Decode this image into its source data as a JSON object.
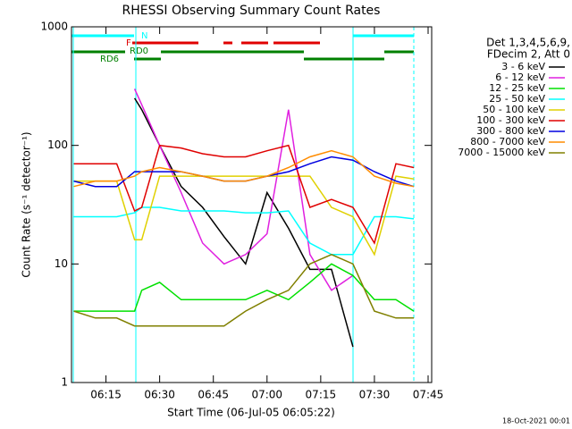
{
  "chart_data": {
    "type": "line",
    "title": "RHESSI Observing Summary Count Rates",
    "x_label": "Start Time (06-Jul-05 06:05:22)",
    "y_label": "Count Rate (s⁻¹ detector⁻¹)",
    "legend_title": [
      "Det 1,3,4,5,6,9,",
      "FDecim 2, Att 0"
    ],
    "annotations": [
      "N",
      "F",
      "RD0",
      "RD6"
    ],
    "footer": "18-Oct-2021 00:01",
    "log_scale": true,
    "x": [
      366,
      372,
      378,
      383,
      385,
      390,
      396,
      402,
      408,
      414,
      420,
      426,
      432,
      438,
      444,
      450,
      456,
      461
    ],
    "xlim": [
      365.37,
      466
    ],
    "xticks": [
      {
        "value": 375,
        "label": "06:15"
      },
      {
        "value": 390,
        "label": "06:30"
      },
      {
        "value": 405,
        "label": "06:45"
      },
      {
        "value": 420,
        "label": "07:00"
      },
      {
        "value": 435,
        "label": "07:15"
      },
      {
        "value": 450,
        "label": "07:30"
      },
      {
        "value": 465,
        "label": "07:45"
      }
    ],
    "ylim": [
      1,
      1000
    ],
    "yticks": [
      1,
      10,
      100,
      1000
    ],
    "series": [
      {
        "name": "3 - 6 keV",
        "color": "#000000",
        "values": [
          null,
          null,
          null,
          250,
          200,
          100,
          45,
          30,
          17,
          10,
          40,
          20,
          9,
          9,
          2,
          null,
          null,
          null
        ]
      },
      {
        "name": "6 - 12 keV",
        "color": "#e020e0",
        "values": [
          null,
          null,
          null,
          300,
          220,
          100,
          40,
          15,
          10,
          12,
          18,
          200,
          12,
          6,
          8,
          null,
          null,
          null
        ]
      },
      {
        "name": "12 - 25 keV",
        "color": "#00e000",
        "values": [
          4,
          4,
          4,
          4,
          6,
          7,
          5,
          5,
          5,
          5,
          6,
          5,
          7,
          10,
          8,
          5,
          5,
          4
        ]
      },
      {
        "name": "25 - 50 keV",
        "color": "#00ffff",
        "values": [
          25,
          25,
          25,
          27,
          30,
          30,
          28,
          28,
          28,
          27,
          27,
          28,
          15,
          12,
          12,
          25,
          25,
          24
        ]
      },
      {
        "name": "50 - 100 keV",
        "color": "#e0d000",
        "values": [
          50,
          50,
          50,
          16,
          16,
          55,
          55,
          55,
          55,
          55,
          55,
          55,
          55,
          30,
          25,
          12,
          55,
          52
        ]
      },
      {
        "name": "100 - 300 keV",
        "color": "#e00000",
        "values": [
          70,
          70,
          70,
          28,
          30,
          100,
          95,
          85,
          80,
          80,
          90,
          100,
          30,
          35,
          30,
          15,
          70,
          65
        ]
      },
      {
        "name": "300 - 800 keV",
        "color": "#0000e0",
        "values": [
          50,
          45,
          45,
          60,
          60,
          60,
          60,
          55,
          50,
          50,
          55,
          60,
          70,
          80,
          75,
          60,
          50,
          45
        ]
      },
      {
        "name": "800 - 7000 keV",
        "color": "#ff8c00",
        "values": [
          45,
          50,
          50,
          55,
          60,
          65,
          60,
          55,
          50,
          50,
          55,
          65,
          80,
          90,
          80,
          55,
          48,
          45
        ]
      },
      {
        "name": "7000 - 15000 keV",
        "color": "#808000",
        "values": [
          4,
          3.5,
          3.5,
          3,
          3,
          3,
          3,
          3,
          3,
          4,
          5,
          6,
          10,
          12,
          10,
          4,
          3.5,
          3.5
        ]
      }
    ]
  }
}
